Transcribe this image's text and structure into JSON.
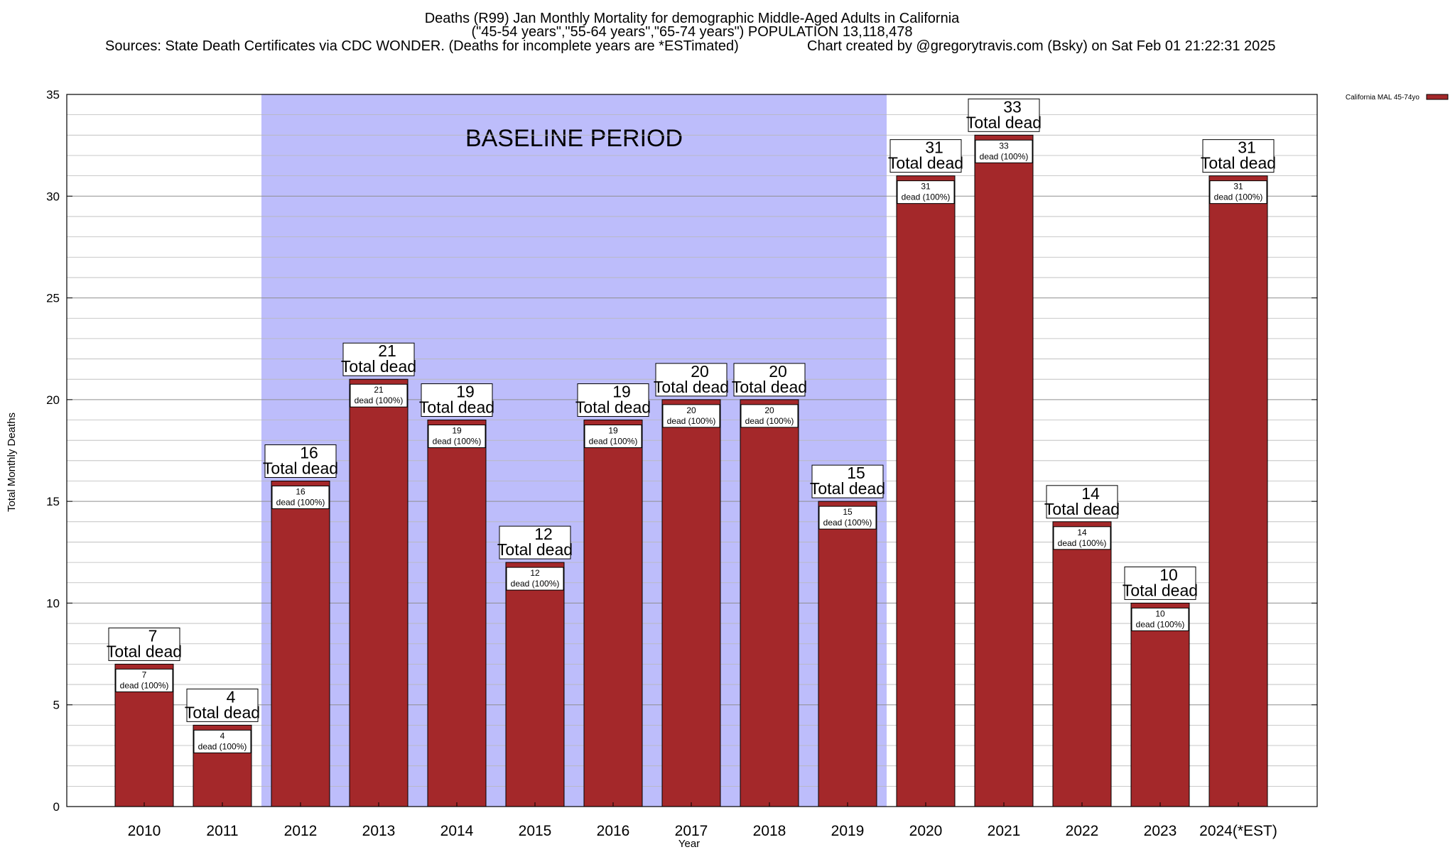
{
  "header": {
    "title_line1": "Deaths (R99) Jan Monthly Mortality for demographic Middle-Aged Adults in California",
    "title_line2": "(\"45-54 years\",\"55-64 years\",\"65-74 years\") POPULATION 13,118,478",
    "sources": "Sources: State Death Certificates via CDC WONDER. (Deaths for incomplete years are *ESTimated)",
    "credit": "Chart created by @gregorytravis.com (Bsky) on Sat Feb 01 21:22:31 2025"
  },
  "chart_data": {
    "type": "bar",
    "title": "Deaths (R99) Jan Monthly Mortality for demographic Middle-Aged Adults in California",
    "xlabel": "Year",
    "ylabel": "Total Monthly Deaths",
    "ylim": [
      0,
      35
    ],
    "yticks": [
      "0",
      "5",
      "10",
      "15",
      "20",
      "25",
      "30",
      "35"
    ],
    "grid": true,
    "legend_position": "top-right",
    "categories": [
      "2010",
      "2011",
      "2012",
      "2013",
      "2014",
      "2015",
      "2016",
      "2017",
      "2018",
      "2019",
      "2020",
      "2021",
      "2022",
      "2023",
      "2024(*EST)"
    ],
    "series": [
      {
        "name": "California MAL 45-74yo",
        "color": "#a4282a",
        "values": [
          7,
          4,
          16,
          21,
          19,
          12,
          19,
          20,
          20,
          15,
          31,
          33,
          14,
          10,
          31
        ]
      }
    ],
    "total_label_values": [
      "7",
      "4",
      "16",
      "21",
      "19",
      "12",
      "19",
      "20",
      "20",
      "15",
      "31",
      "33",
      "14",
      "10",
      "31"
    ],
    "total_label_text": "Total dead",
    "inner_label_text": "dead (100%)",
    "baseline": {
      "label": "BASELINE PERIOD",
      "from": "2012",
      "to": "2019",
      "color": "#bdbdfb"
    }
  }
}
